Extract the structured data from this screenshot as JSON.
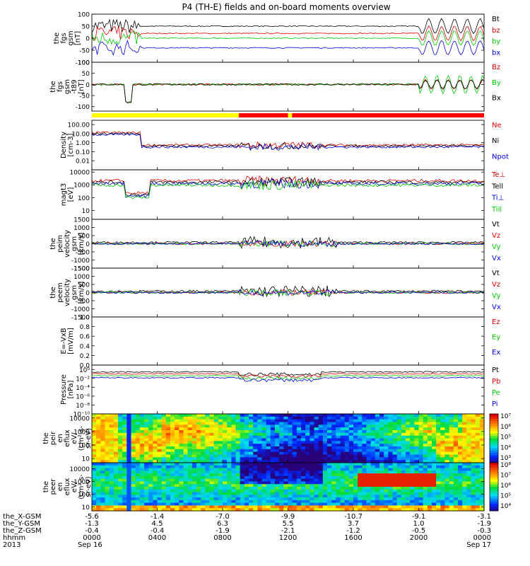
{
  "chart_data": {
    "type": "line",
    "title": "P4 (TH-E) fields and on-board moments overview",
    "colors": {
      "black": "#000000",
      "red": "#e00000",
      "green": "#00cc00",
      "blue": "#0000dd"
    },
    "panels": [
      {
        "id": "fgs",
        "ylabel": [
          "the",
          "fgs",
          "gsm",
          "[nT]"
        ],
        "ylim": [
          -100,
          100
        ],
        "log": false,
        "yticks": [
          {
            "v": 100,
            "t": "100"
          },
          {
            "v": 50,
            "t": "50"
          },
          {
            "v": 0,
            "t": "0"
          },
          {
            "v": -50,
            "t": "-50"
          },
          {
            "v": -100,
            "t": "-100"
          }
        ],
        "legend": [
          {
            "t": "Bt",
            "c": "black"
          },
          {
            "t": "bz",
            "c": "red"
          },
          {
            "t": "by",
            "c": "green"
          },
          {
            "t": "bx",
            "c": "blue"
          }
        ]
      },
      {
        "id": "fgs_dsl",
        "ylabel": [
          "the",
          "fgs",
          "gsm",
          "-t89",
          "[nT]"
        ],
        "ylim": [
          -120,
          100
        ],
        "log": false,
        "yticks": [
          {
            "v": 100,
            "t": "100"
          },
          {
            "v": 50,
            "t": "50"
          },
          {
            "v": 0,
            "t": "0"
          },
          {
            "v": -50,
            "t": "-50"
          },
          {
            "v": -100,
            "t": "-100"
          }
        ],
        "legend": [
          {
            "t": "Bz",
            "c": "red"
          },
          {
            "t": "By",
            "c": "green"
          },
          {
            "t": "Bx",
            "c": "black"
          }
        ]
      },
      {
        "id": "density",
        "ylabel": [
          "Density",
          "[cm-3]"
        ],
        "ylim": [
          0.001,
          300
        ],
        "log": true,
        "yticks": [
          {
            "v": 100,
            "t": "100.00"
          },
          {
            "v": 10,
            "t": "10.00"
          },
          {
            "v": 1,
            "t": "1.00"
          },
          {
            "v": 0.1,
            "t": "0.10"
          },
          {
            "v": 0.01,
            "t": "0.01"
          }
        ],
        "legend": [
          {
            "t": "Ne",
            "c": "red"
          },
          {
            "t": "Ni",
            "c": "black"
          },
          {
            "t": "Npot",
            "c": "blue"
          }
        ]
      },
      {
        "id": "temp",
        "ylabel": [
          "magt3",
          "[eV]"
        ],
        "ylim": [
          2,
          15000
        ],
        "log": true,
        "yticks": [
          {
            "v": 10000,
            "t": "10000"
          },
          {
            "v": 1000,
            "t": "1000"
          },
          {
            "v": 100,
            "t": "100"
          },
          {
            "v": 10,
            "t": "10"
          }
        ],
        "legend": [
          {
            "t": "Te⊥",
            "c": "red"
          },
          {
            "t": "Tell",
            "c": "black"
          },
          {
            "t": "Ti⊥",
            "c": "blue"
          },
          {
            "t": "Till",
            "c": "green"
          }
        ]
      },
      {
        "id": "peim",
        "ylabel": [
          "the",
          "peim",
          "velocity",
          "gsm",
          "[km/s]"
        ],
        "ylim": [
          -1500,
          1500
        ],
        "log": false,
        "yticks": [
          {
            "v": 1500,
            "t": "1500"
          },
          {
            "v": 1000,
            "t": "1000"
          },
          {
            "v": 500,
            "t": "500"
          },
          {
            "v": 0,
            "t": "0"
          },
          {
            "v": -500,
            "t": "-500"
          },
          {
            "v": -1000,
            "t": "-1000"
          },
          {
            "v": -1500,
            "t": "-1500"
          }
        ],
        "legend": [
          {
            "t": "Vt",
            "c": "black"
          },
          {
            "t": "Vz",
            "c": "red"
          },
          {
            "t": "Vy",
            "c": "green"
          },
          {
            "t": "Vx",
            "c": "blue"
          }
        ]
      },
      {
        "id": "peem",
        "ylabel": [
          "the",
          "peem",
          "velocity",
          "gsm",
          "[km/s]"
        ],
        "ylim": [
          -1500,
          1500
        ],
        "log": false,
        "yticks": [
          {
            "v": 1500,
            "t": "1500"
          },
          {
            "v": 1000,
            "t": "1000"
          },
          {
            "v": 500,
            "t": "500"
          },
          {
            "v": 0,
            "t": "0"
          },
          {
            "v": -500,
            "t": "-500"
          },
          {
            "v": -1000,
            "t": "-1000"
          },
          {
            "v": -1500,
            "t": "-1500"
          }
        ],
        "legend": [
          {
            "t": "Vt",
            "c": "black"
          },
          {
            "t": "Vz",
            "c": "red"
          },
          {
            "t": "Vy",
            "c": "green"
          },
          {
            "t": "Vx",
            "c": "blue"
          }
        ]
      },
      {
        "id": "efield",
        "ylabel": [
          "E=-VxB",
          "[mV/m]"
        ],
        "ylim": [
          0,
          1
        ],
        "log": false,
        "yticks": [
          {
            "v": 1,
            "t": "1.0"
          },
          {
            "v": 0.8,
            "t": "0.8"
          },
          {
            "v": 0.6,
            "t": "0.6"
          },
          {
            "v": 0.4,
            "t": "0.4"
          },
          {
            "v": 0.2,
            "t": "0.2"
          },
          {
            "v": 0,
            "t": "0.0"
          }
        ],
        "legend": [
          {
            "t": "Ez",
            "c": "red"
          },
          {
            "t": "Ey",
            "c": "green"
          },
          {
            "t": "Ex",
            "c": "blue"
          }
        ]
      },
      {
        "id": "pressure",
        "ylabel": [
          "Pressure",
          "[nPa]"
        ],
        "ylim": [
          1e-10,
          10
        ],
        "log": true,
        "yticks": [
          {
            "v": 1,
            "t": "10⁰"
          },
          {
            "v": 0.01,
            "t": "10⁻²"
          },
          {
            "v": 0.0001,
            "t": "10⁻⁴"
          },
          {
            "v": 1e-06,
            "t": "10⁻⁶"
          },
          {
            "v": 1e-08,
            "t": "10⁻⁸"
          },
          {
            "v": 1e-10,
            "t": "10⁻¹⁰"
          }
        ],
        "legend": [
          {
            "t": "Pt",
            "c": "black"
          },
          {
            "t": "Pb",
            "c": "red"
          },
          {
            "t": "Pe",
            "c": "green"
          },
          {
            "t": "Pi",
            "c": "blue"
          }
        ]
      },
      {
        "id": "peir",
        "ylabel": [
          "the",
          "peir",
          "en",
          "eflux",
          "eV/",
          "(cm²-s-",
          "sr-eV)"
        ],
        "ylim": [
          5,
          20000
        ],
        "log": true,
        "yticks": [
          {
            "v": 10000,
            "t": "10000"
          },
          {
            "v": 1000,
            "t": "1000"
          },
          {
            "v": 100,
            "t": "100"
          },
          {
            "v": 10,
            "t": "10"
          }
        ],
        "colorbar": [
          "10⁷",
          "10⁶",
          "10⁵",
          "10⁴",
          "10³"
        ]
      },
      {
        "id": "peer",
        "ylabel": [
          "the",
          "peer",
          "en",
          "eflux",
          "eV/",
          "(cm²-s-",
          "sr-eV)"
        ],
        "ylim": [
          5,
          30000
        ],
        "log": true,
        "yticks": [
          {
            "v": 10000,
            "t": "10000"
          },
          {
            "v": 1000,
            "t": "1000"
          },
          {
            "v": 100,
            "t": "100"
          },
          {
            "v": 10,
            "t": "10"
          }
        ],
        "colorbar": [
          "10⁸",
          "10⁷",
          "10⁶",
          "10⁵",
          "10⁴"
        ]
      }
    ],
    "x_axis": {
      "row_labels": [
        "the_X-GSM",
        "the_Y-GSM",
        "the_Z-GSM",
        "hhmm",
        "2013"
      ],
      "ticks": [
        {
          "x": 0,
          "vals": [
            "-5.6",
            "-1.3",
            "-0.4",
            "0000",
            "Sep 16"
          ]
        },
        {
          "x": 4,
          "vals": [
            "-1.4",
            "4.5",
            "-0.4",
            "0400",
            ""
          ]
        },
        {
          "x": 8,
          "vals": [
            "-7.0",
            "6.3",
            "-1.9",
            "0800",
            ""
          ]
        },
        {
          "x": 12,
          "vals": [
            "-9.9",
            "5.5",
            "-2.1",
            "1200",
            ""
          ]
        },
        {
          "x": 16,
          "vals": [
            "-10.7",
            "3.7",
            "-1.2",
            "1600",
            ""
          ]
        },
        {
          "x": 20,
          "vals": [
            "-9.1",
            "1.0",
            "-0.5",
            "2000",
            ""
          ]
        },
        {
          "x": 24,
          "vals": [
            "-3.1",
            "-1.9",
            "-0.3",
            "0000",
            "Sep 17"
          ]
        }
      ],
      "xlim": [
        0,
        24
      ]
    },
    "mode_bar": [
      {
        "from": 0,
        "to": 9.0,
        "color": "#ffff00"
      },
      {
        "from": 9.0,
        "to": 12.0,
        "color": "#ff0000"
      },
      {
        "from": 12.0,
        "to": 12.25,
        "color": "#ffff00"
      },
      {
        "from": 12.25,
        "to": 24,
        "color": "#ff0000"
      }
    ]
  }
}
